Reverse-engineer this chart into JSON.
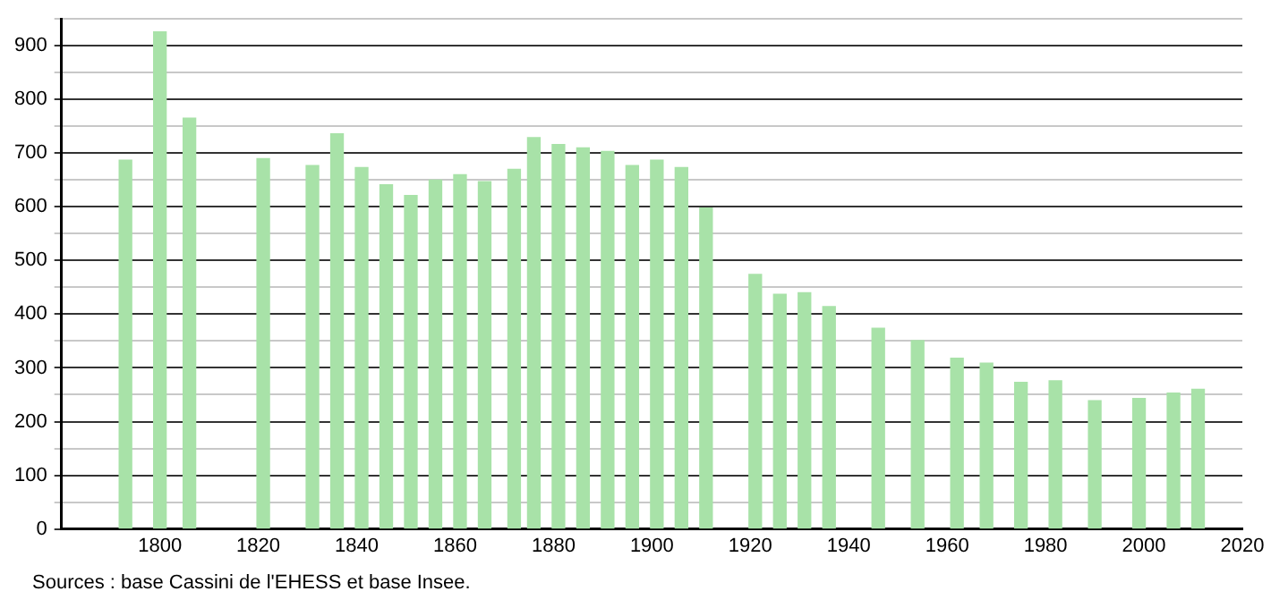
{
  "chart_data": {
    "type": "bar",
    "x": [
      1793,
      1800,
      1806,
      1821,
      1831,
      1836,
      1841,
      1846,
      1851,
      1856,
      1861,
      1866,
      1872,
      1876,
      1881,
      1886,
      1891,
      1896,
      1901,
      1906,
      1911,
      1921,
      1926,
      1931,
      1936,
      1946,
      1954,
      1962,
      1968,
      1975,
      1982,
      1990,
      1999,
      2006,
      2011
    ],
    "values": [
      687,
      926,
      765,
      690,
      677,
      736,
      673,
      641,
      621,
      650,
      660,
      647,
      670,
      729,
      716,
      710,
      703,
      677,
      687,
      673,
      598,
      474,
      437,
      440,
      414,
      374,
      351,
      318,
      309,
      273,
      276,
      239,
      243,
      253,
      260
    ],
    "color": "#a8e2a8",
    "xlim": [
      1780,
      2020
    ],
    "xticks": [
      1800,
      1820,
      1840,
      1860,
      1880,
      1900,
      1920,
      1940,
      1960,
      1980,
      2000,
      2020
    ],
    "ylim": [
      0,
      950
    ],
    "yticks": [
      0,
      {
        "value": 50,
        "label": null
      },
      100,
      {
        "value": 150,
        "label": null
      },
      200,
      {
        "value": 250,
        "label": null
      },
      300,
      {
        "value": 350,
        "label": null
      },
      400,
      {
        "value": 450,
        "label": null
      },
      500,
      {
        "value": 550,
        "label": null
      },
      600,
      {
        "value": 650,
        "label": null
      },
      700,
      {
        "value": 750,
        "label": null
      },
      800,
      {
        "value": 850,
        "label": null
      },
      900,
      {
        "value": 950,
        "label": null
      }
    ],
    "grid": "y",
    "annotations": [
      "Sources : base Cassini de l'EHESS et base Insee."
    ]
  }
}
